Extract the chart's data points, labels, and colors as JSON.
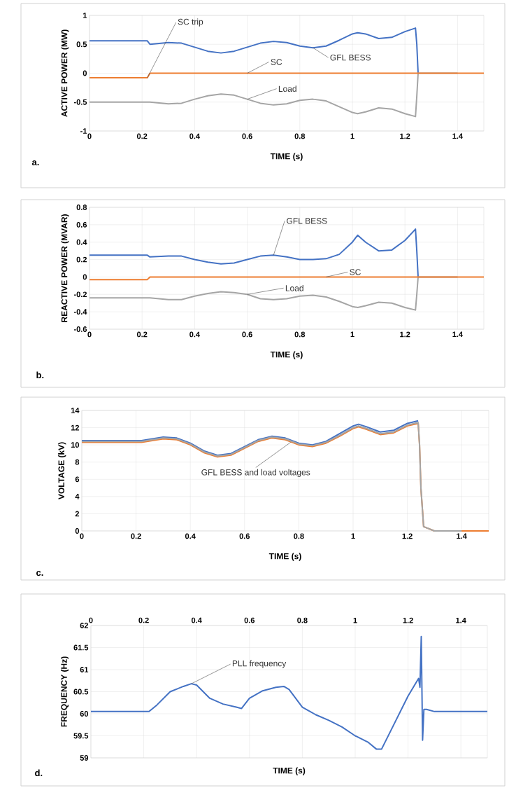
{
  "chart_data": [
    {
      "type": "line",
      "xlabel": "TIME (s)",
      "ylabel": "ACTIVE POWER (MW)",
      "xlim": [
        0,
        1.5
      ],
      "xticks": [
        0,
        0.2,
        0.4,
        0.6,
        0.8,
        1,
        1.2,
        1.4
      ],
      "ylim": [
        -1,
        1
      ],
      "yticks": [
        -1,
        -0.5,
        0,
        0.5,
        1
      ],
      "grid": true,
      "x": [
        0,
        0.1,
        0.2,
        0.22,
        0.23,
        0.3,
        0.35,
        0.4,
        0.45,
        0.5,
        0.55,
        0.6,
        0.65,
        0.7,
        0.75,
        0.8,
        0.85,
        0.9,
        0.95,
        1.0,
        1.02,
        1.05,
        1.1,
        1.15,
        1.2,
        1.24,
        1.245,
        1.25,
        1.3,
        1.4,
        1.5
      ],
      "series": [
        {
          "name": "GFL BESS",
          "color": "#4472c4",
          "values": [
            0.56,
            0.56,
            0.56,
            0.56,
            0.5,
            0.53,
            0.52,
            0.45,
            0.38,
            0.35,
            0.38,
            0.45,
            0.52,
            0.55,
            0.53,
            0.47,
            0.44,
            0.47,
            0.57,
            0.68,
            0.7,
            0.68,
            0.6,
            0.62,
            0.72,
            0.78,
            0.5,
            0,
            null,
            null,
            null
          ]
        },
        {
          "name": "Load",
          "color": "#a5a5a5",
          "values": [
            -0.5,
            -0.5,
            -0.5,
            -0.5,
            -0.5,
            -0.53,
            -0.52,
            -0.45,
            -0.39,
            -0.36,
            -0.38,
            -0.45,
            -0.52,
            -0.55,
            -0.53,
            -0.47,
            -0.45,
            -0.48,
            -0.58,
            -0.68,
            -0.7,
            -0.67,
            -0.6,
            -0.62,
            -0.7,
            -0.75,
            -0.4,
            0,
            0,
            0,
            null
          ]
        },
        {
          "name": "SC",
          "color": "#ed7d31",
          "values": [
            -0.08,
            -0.08,
            -0.08,
            -0.08,
            0,
            0,
            0,
            0,
            0,
            0,
            0,
            0,
            0,
            0,
            0,
            0,
            0,
            0,
            0,
            0,
            0,
            0,
            0,
            0,
            0,
            0,
            0,
            0,
            0,
            0,
            0
          ]
        }
      ],
      "annotations": [
        {
          "text": "SC trip",
          "x": 0.22,
          "y": -0.08
        },
        "a."
      ]
    },
    {
      "type": "line",
      "xlabel": "TIME (s)",
      "ylabel": "REACTIVE POWER (MVAR)",
      "xlim": [
        0,
        1.5
      ],
      "xticks": [
        0,
        0.2,
        0.4,
        0.6,
        0.8,
        1,
        1.2,
        1.4
      ],
      "ylim": [
        -0.6,
        0.8
      ],
      "yticks": [
        -0.6,
        -0.4,
        -0.2,
        0,
        0.2,
        0.4,
        0.6,
        0.8
      ],
      "grid": true,
      "x": [
        0,
        0.1,
        0.2,
        0.22,
        0.23,
        0.3,
        0.35,
        0.4,
        0.45,
        0.5,
        0.55,
        0.6,
        0.65,
        0.7,
        0.75,
        0.8,
        0.85,
        0.9,
        0.95,
        1.0,
        1.02,
        1.05,
        1.1,
        1.15,
        1.2,
        1.24,
        1.245,
        1.25,
        1.3,
        1.4,
        1.5
      ],
      "series": [
        {
          "name": "GFL BESS",
          "color": "#4472c4",
          "values": [
            0.25,
            0.25,
            0.25,
            0.25,
            0.23,
            0.24,
            0.24,
            0.2,
            0.17,
            0.15,
            0.16,
            0.2,
            0.24,
            0.25,
            0.23,
            0.2,
            0.2,
            0.21,
            0.26,
            0.4,
            0.48,
            0.4,
            0.3,
            0.31,
            0.42,
            0.55,
            0.3,
            0,
            null,
            null,
            null
          ]
        },
        {
          "name": "Load",
          "color": "#a5a5a5",
          "values": [
            -0.24,
            -0.24,
            -0.24,
            -0.24,
            -0.24,
            -0.26,
            -0.26,
            -0.22,
            -0.19,
            -0.17,
            -0.18,
            -0.2,
            -0.25,
            -0.26,
            -0.25,
            -0.22,
            -0.21,
            -0.23,
            -0.28,
            -0.34,
            -0.35,
            -0.33,
            -0.29,
            -0.3,
            -0.35,
            -0.38,
            -0.2,
            0,
            0,
            0,
            null
          ]
        },
        {
          "name": "SC",
          "color": "#ed7d31",
          "values": [
            -0.03,
            -0.03,
            -0.03,
            -0.03,
            0,
            0,
            0,
            0,
            0,
            0,
            0,
            0,
            0,
            0,
            0,
            0,
            0,
            0,
            0,
            0,
            0,
            0,
            0,
            0,
            0,
            0,
            0,
            0,
            0,
            0,
            0
          ]
        }
      ],
      "annotations": [
        "b."
      ]
    },
    {
      "type": "line",
      "xlabel": "TIME (s)",
      "ylabel": "VOLTAGE (kV)",
      "xlim": [
        0,
        1.5
      ],
      "xticks": [
        0,
        0.2,
        0.4,
        0.6,
        0.8,
        1,
        1.2,
        1.4
      ],
      "ylim": [
        0,
        14
      ],
      "yticks": [
        0,
        2,
        4,
        6,
        8,
        10,
        12,
        14
      ],
      "grid": true,
      "x": [
        0,
        0.1,
        0.2,
        0.22,
        0.3,
        0.35,
        0.4,
        0.45,
        0.5,
        0.55,
        0.6,
        0.65,
        0.7,
        0.75,
        0.8,
        0.85,
        0.9,
        0.95,
        1.0,
        1.02,
        1.05,
        1.1,
        1.15,
        1.2,
        1.24,
        1.245,
        1.25,
        1.26,
        1.3,
        1.4,
        1.5
      ],
      "series": [
        {
          "color": "#4472c4",
          "values": [
            10.5,
            10.5,
            10.5,
            10.5,
            10.9,
            10.8,
            10.2,
            9.3,
            8.8,
            9.0,
            9.8,
            10.6,
            11.0,
            10.8,
            10.2,
            10.0,
            10.4,
            11.3,
            12.2,
            12.4,
            12.1,
            11.5,
            11.7,
            12.5,
            12.8,
            null,
            null,
            null,
            null,
            null,
            null
          ]
        },
        {
          "color": "#ed7d31",
          "values": [
            10.3,
            10.3,
            10.3,
            10.3,
            10.7,
            10.6,
            10.0,
            9.1,
            8.6,
            8.8,
            9.6,
            10.4,
            10.8,
            10.6,
            10.0,
            9.8,
            10.2,
            11.0,
            11.9,
            12.1,
            11.8,
            11.2,
            11.4,
            12.2,
            12.5,
            10,
            5,
            0.5,
            0,
            0,
            0
          ]
        },
        {
          "color": "#a5a5a5",
          "values": [
            10.4,
            10.4,
            10.4,
            10.4,
            10.8,
            10.7,
            10.1,
            9.2,
            8.7,
            8.9,
            9.7,
            10.5,
            10.9,
            10.7,
            10.1,
            9.9,
            10.3,
            11.1,
            12.0,
            12.2,
            11.9,
            11.3,
            11.5,
            12.3,
            12.6,
            10,
            5,
            0.5,
            0,
            0,
            null
          ]
        }
      ],
      "annotations": [
        {
          "text": "GFL BESS and load voltages",
          "x": 0.77,
          "y": 10.3
        },
        "c."
      ]
    },
    {
      "type": "line",
      "xlabel": "TIME (s)",
      "ylabel": "FREQUENCY (Hz)",
      "xlim": [
        0,
        1.5
      ],
      "xticks": [
        0,
        0.2,
        0.4,
        0.6,
        0.8,
        1,
        1.2,
        1.4
      ],
      "ylim": [
        59,
        62
      ],
      "yticks": [
        59,
        59.5,
        60,
        60.5,
        61,
        61.5,
        62
      ],
      "grid": true,
      "x": [
        0,
        0.1,
        0.2,
        0.22,
        0.25,
        0.3,
        0.35,
        0.38,
        0.4,
        0.45,
        0.5,
        0.55,
        0.57,
        0.6,
        0.65,
        0.7,
        0.73,
        0.75,
        0.8,
        0.85,
        0.9,
        0.95,
        1.0,
        1.05,
        1.08,
        1.1,
        1.15,
        1.2,
        1.24,
        1.245,
        1.25,
        1.255,
        1.26,
        1.27,
        1.3,
        1.4,
        1.5
      ],
      "series": [
        {
          "color": "#4472c4",
          "values": [
            60.05,
            60.05,
            60.05,
            60.05,
            60.2,
            60.5,
            60.62,
            60.68,
            60.65,
            60.35,
            60.22,
            60.15,
            60.12,
            60.35,
            60.52,
            60.6,
            60.62,
            60.55,
            60.15,
            59.98,
            59.85,
            59.7,
            59.5,
            59.35,
            59.2,
            59.2,
            59.8,
            60.4,
            60.8,
            60.6,
            61.75,
            59.4,
            60.1,
            60.1,
            60.05,
            60.05,
            60.05
          ]
        }
      ],
      "annotations": [
        {
          "text": "PLL frequency",
          "x": 0.38,
          "y": 60.68
        },
        "d."
      ]
    }
  ]
}
